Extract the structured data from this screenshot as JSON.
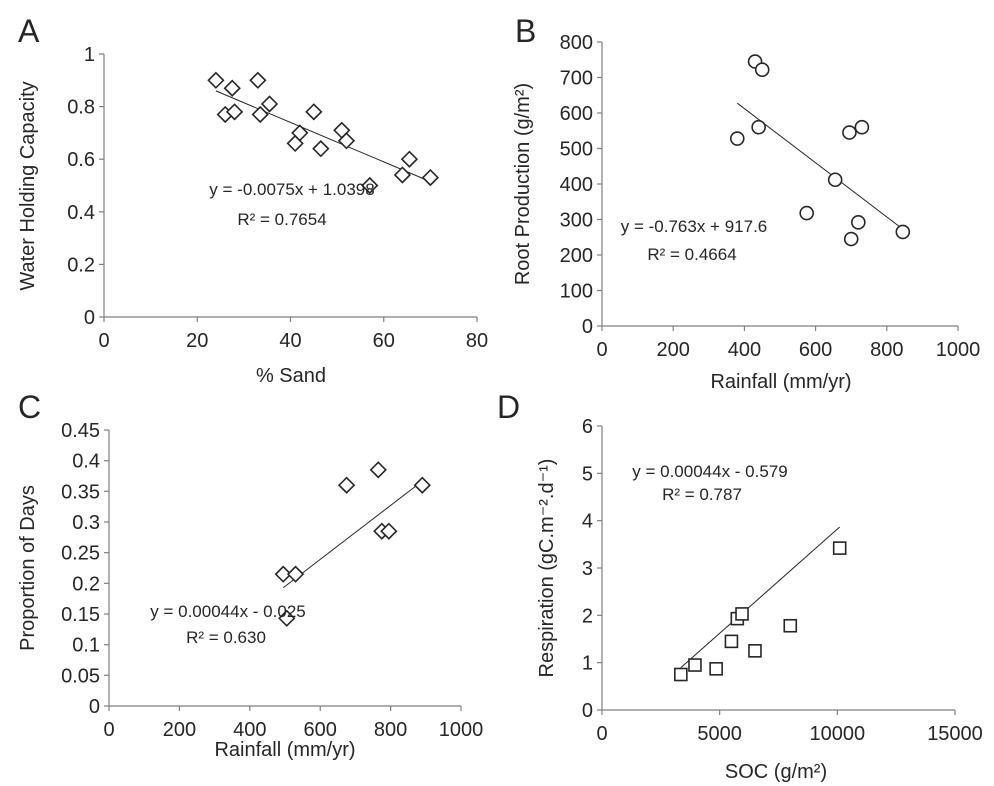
{
  "chart_data": [
    {
      "panel": "A",
      "type": "scatter",
      "marker": "diamond",
      "xlabel": "% Sand",
      "ylabel": "Water Holding Capacity",
      "xlim": [
        0,
        80
      ],
      "ylim": [
        0,
        1
      ],
      "xticks": [
        "0",
        "20",
        "40",
        "60",
        "80"
      ],
      "yticks": [
        "0",
        "0.2",
        "0.4",
        "0.6",
        "0.8",
        "1"
      ],
      "x": [
        24,
        26,
        27.5,
        28,
        33,
        33.5,
        35.5,
        41,
        42,
        45,
        46.5,
        51,
        52,
        57,
        64,
        65.5,
        70
      ],
      "y": [
        0.9,
        0.77,
        0.87,
        0.78,
        0.9,
        0.77,
        0.81,
        0.66,
        0.7,
        0.78,
        0.64,
        0.71,
        0.67,
        0.5,
        0.54,
        0.6,
        0.53
      ],
      "trendline": {
        "x": [
          24,
          70
        ],
        "slope": -0.0075,
        "intercept": 1.0398
      },
      "equation": "y = -0.0075x + 1.0398",
      "r2": "R² = 0.7654"
    },
    {
      "panel": "B",
      "type": "scatter",
      "marker": "circle",
      "xlabel": "Rainfall (mm/yr)",
      "ylabel": "Root Production (g/m²)",
      "xlim": [
        0,
        1000
      ],
      "ylim": [
        0,
        800
      ],
      "xticks": [
        "0",
        "200",
        "400",
        "600",
        "800",
        "1000"
      ],
      "yticks": [
        "0",
        "100",
        "200",
        "300",
        "400",
        "500",
        "600",
        "700",
        "800"
      ],
      "x": [
        380,
        430,
        440,
        450,
        575,
        655,
        695,
        700,
        720,
        730,
        845
      ],
      "y": [
        528,
        745,
        560,
        722,
        318,
        412,
        545,
        245,
        292,
        560,
        265
      ],
      "trendline": {
        "x": [
          380,
          845
        ],
        "slope": -0.763,
        "intercept": 917.6
      },
      "equation": "y = -0.763x + 917.6",
      "r2": "R² = 0.4664"
    },
    {
      "panel": "C",
      "type": "scatter",
      "marker": "diamond",
      "xlabel": "Rainfall (mm/yr)",
      "ylabel": "Proportion of Days",
      "xlim": [
        0,
        1000
      ],
      "ylim": [
        0,
        0.45
      ],
      "xticks": [
        "0",
        "200",
        "400",
        "600",
        "800",
        "1000"
      ],
      "yticks": [
        "0",
        "0.05",
        "0.1",
        "0.15",
        "0.2",
        "0.25",
        "0.3",
        "0.35",
        "0.4",
        "0.45"
      ],
      "x": [
        495,
        505,
        530,
        675,
        765,
        775,
        795,
        890
      ],
      "y": [
        0.215,
        0.143,
        0.215,
        0.36,
        0.385,
        0.285,
        0.285,
        0.36
      ],
      "trendline": {
        "x": [
          495,
          890
        ],
        "slope": 0.00044,
        "intercept": -0.025
      },
      "equation": "y = 0.00044x - 0.025",
      "r2": "R² = 0.630"
    },
    {
      "panel": "D",
      "type": "scatter",
      "marker": "square",
      "xlabel": "SOC (g/m²)",
      "ylabel": "Respiration (gC.m⁻².d⁻¹)",
      "xlim": [
        0,
        15000
      ],
      "ylim": [
        0,
        6
      ],
      "xticks": [
        "0",
        "5000",
        "10000",
        "15000"
      ],
      "yticks": [
        "0",
        "1",
        "2",
        "3",
        "4",
        "5",
        "6"
      ],
      "x": [
        3350,
        3950,
        4850,
        5500,
        5750,
        5950,
        6500,
        8000,
        10100
      ],
      "y": [
        0.75,
        0.95,
        0.87,
        1.45,
        1.93,
        2.03,
        1.25,
        1.78,
        3.42
      ],
      "trendline": {
        "x": [
          3350,
          10100
        ],
        "slope": 0.00044,
        "intercept": -0.579
      },
      "equation": "y = 0.00044x - 0.579",
      "r2": "R² = 0.787"
    }
  ]
}
